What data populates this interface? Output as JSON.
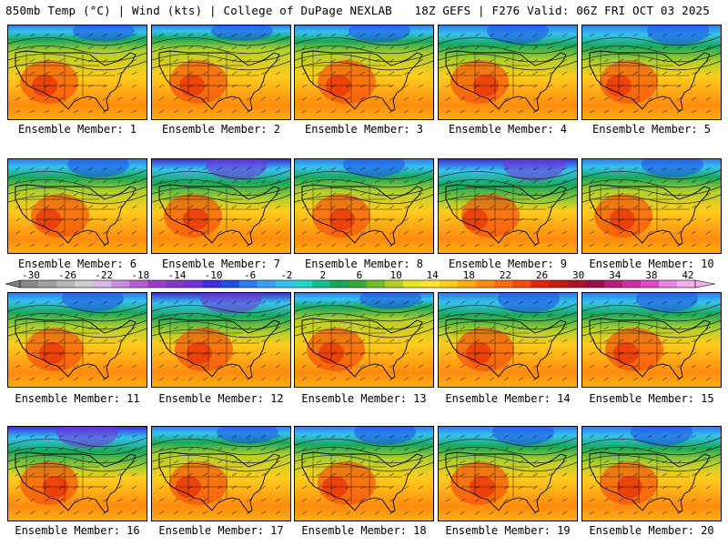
{
  "header": {
    "left": "850mb Temp (°C) | Wind (kts) | College of DuPage NEXLAB",
    "right": "18Z GEFS | F276 Valid: 06Z FRI OCT 03 2025"
  },
  "colorbar": {
    "ticks": [
      "-30",
      "-26",
      "-22",
      "-18",
      "-14",
      "-10",
      "-6",
      "-2",
      "2",
      "6",
      "10",
      "14",
      "18",
      "22",
      "26",
      "30",
      "34",
      "38",
      "42"
    ],
    "colors": [
      "#8b8b8b",
      "#a0a0a0",
      "#b7b7b7",
      "#cfcfcf",
      "#d9b8e8",
      "#c78cdc",
      "#b45fd0",
      "#9c3fc4",
      "#8533c2",
      "#7530d8",
      "#3d2ee0",
      "#1f4fe8",
      "#2f7cf0",
      "#3aa0f2",
      "#35c2ee",
      "#20d6c8",
      "#12c08e",
      "#18a85a",
      "#3aa83c",
      "#74bd2a",
      "#b3d02a",
      "#e6e628",
      "#ffe632",
      "#ffcc1e",
      "#ffae14",
      "#ff8c10",
      "#ff6a0c",
      "#f44a0a",
      "#e2240a",
      "#c81a12",
      "#aa1428",
      "#961044",
      "#b81c78",
      "#d02ea4",
      "#e048c8",
      "#ec82e2",
      "#f2b0ee"
    ]
  },
  "panels": [
    {
      "label": "Ensemble Member: 1",
      "cold": 0.55
    },
    {
      "label": "Ensemble Member: 2",
      "cold": 0.5
    },
    {
      "label": "Ensemble Member: 3",
      "cold": 0.6
    },
    {
      "label": "Ensemble Member: 4",
      "cold": 0.75
    },
    {
      "label": "Ensemble Member: 5",
      "cold": 0.8
    },
    {
      "label": "Ensemble Member: 6",
      "cold": 0.7
    },
    {
      "label": "Ensemble Member: 7",
      "cold": 0.9
    },
    {
      "label": "Ensemble Member: 8",
      "cold": 0.7
    },
    {
      "label": "Ensemble Member: 9",
      "cold": 1.0
    },
    {
      "label": "Ensemble Member: 10",
      "cold": 0.7
    },
    {
      "label": "Ensemble Member: 11",
      "cold": 0.75
    },
    {
      "label": "Ensemble Member: 12",
      "cold": 0.9
    },
    {
      "label": "Ensemble Member: 13",
      "cold": 0.55
    },
    {
      "label": "Ensemble Member: 14",
      "cold": 0.85
    },
    {
      "label": "Ensemble Member: 15",
      "cold": 0.8
    },
    {
      "label": "Ensemble Member: 16",
      "cold": 0.95
    },
    {
      "label": "Ensemble Member: 17",
      "cold": 0.6
    },
    {
      "label": "Ensemble Member: 18",
      "cold": 0.7
    },
    {
      "label": "Ensemble Member: 19",
      "cold": 0.75
    },
    {
      "label": "Ensemble Member: 20",
      "cold": 0.8
    }
  ]
}
